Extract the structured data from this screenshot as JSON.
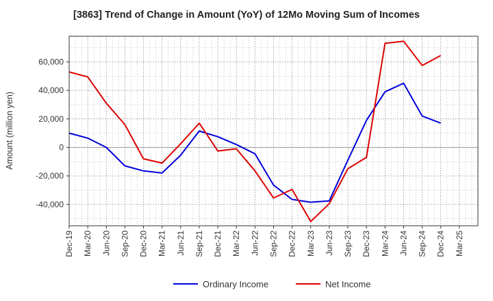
{
  "chart_data": {
    "type": "line",
    "title": "[3863]  Trend of Change in Amount (YoY) of 12Mo Moving Sum of Incomes",
    "xlabel": "",
    "ylabel": "Amount (million yen)",
    "ylim": [
      -55000,
      78000
    ],
    "yticks": [
      -40000,
      -20000,
      0,
      20000,
      40000,
      60000
    ],
    "ytick_labels": [
      "-40,000",
      "-20,000",
      "0",
      "20,000",
      "40,000",
      "60,000"
    ],
    "grid": true,
    "legend_position": "bottom-center",
    "categories": [
      "Dec-19",
      "Mar-20",
      "Jun-20",
      "Sep-20",
      "Dec-20",
      "Mar-21",
      "Jun-21",
      "Sep-21",
      "Dec-21",
      "Mar-22",
      "Jun-22",
      "Sep-22",
      "Dec-22",
      "Mar-23",
      "Jun-23",
      "Sep-23",
      "Dec-23",
      "Mar-24",
      "Jun-24",
      "Sep-24",
      "Dec-24",
      "Mar-25"
    ],
    "series": [
      {
        "name": "Ordinary Income",
        "color": "#0000dd",
        "values": [
          10000,
          6500,
          0,
          -13000,
          -16500,
          -18000,
          -5500,
          11500,
          7500,
          2000,
          -4500,
          -26500,
          -36500,
          -38500,
          -37500,
          -9000,
          19000,
          39000,
          45000,
          22000,
          17000,
          null
        ]
      },
      {
        "name": "Net Income",
        "color": "#dd0000",
        "values": [
          53000,
          49500,
          31000,
          16000,
          -8000,
          -11000,
          2500,
          17000,
          -2500,
          -1000,
          -16500,
          -35500,
          -29500,
          -52000,
          -39500,
          -15000,
          -7000,
          73000,
          74500,
          57500,
          64500,
          null
        ]
      }
    ]
  }
}
